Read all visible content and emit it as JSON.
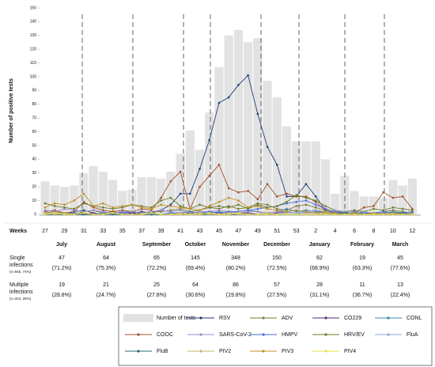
{
  "chart_data": {
    "type": "combo",
    "ylabel": "Number of positive tests",
    "xlabel": "Weeks",
    "categories": [
      "27",
      null,
      "29",
      null,
      "31",
      null,
      "33",
      null,
      "35",
      null,
      "37",
      null,
      "39",
      null,
      "41",
      null,
      "43",
      null,
      "45",
      null,
      "47",
      null,
      "49",
      null,
      "51",
      null,
      "53",
      null,
      "2",
      null,
      "4",
      null,
      "6",
      null,
      "8",
      null,
      "10",
      null,
      "12"
    ],
    "ylim": [
      0,
      150
    ],
    "yticks": [
      0,
      10,
      20,
      30,
      40,
      50,
      60,
      70,
      80,
      90,
      100,
      110,
      120,
      130,
      140,
      150
    ],
    "bars": {
      "name": "Number of tests",
      "color": "#e2e2e2",
      "values": [
        24,
        21,
        20,
        21,
        30,
        35,
        31,
        25,
        17,
        18,
        27,
        27,
        26,
        31,
        44,
        61,
        47,
        74,
        107,
        130,
        134,
        125,
        128,
        97,
        85,
        64,
        53,
        53,
        53,
        40,
        15,
        28,
        17,
        13,
        13,
        12,
        25,
        21,
        26
      ]
    },
    "series": [
      {
        "name": "RSV",
        "color": "#1f3d7a",
        "values": [
          0,
          1,
          0,
          2,
          3,
          1,
          0,
          1,
          2,
          1,
          2,
          1,
          3,
          7,
          15,
          15,
          33,
          54,
          81,
          85,
          94,
          101,
          73,
          49,
          36,
          13,
          13,
          22,
          13,
          3,
          1,
          1,
          0,
          1,
          1,
          0,
          1,
          1,
          0
        ]
      },
      {
        "name": "ADV",
        "color": "#7a7a3a",
        "values": [
          1,
          2,
          1,
          0,
          2,
          3,
          1,
          2,
          1,
          0,
          1,
          2,
          2,
          3,
          4,
          2,
          3,
          5,
          4,
          6,
          4,
          5,
          8,
          7,
          4,
          3,
          6,
          7,
          5,
          3,
          2,
          1,
          2,
          1,
          1,
          2,
          3,
          2,
          1
        ]
      },
      {
        "name": "CO229",
        "color": "#5a2a7a",
        "values": [
          0,
          0,
          1,
          0,
          0,
          1,
          0,
          0,
          0,
          1,
          0,
          0,
          0,
          0,
          0,
          1,
          0,
          0,
          1,
          0,
          1,
          1,
          0,
          0,
          1,
          2,
          3,
          2,
          3,
          1,
          0,
          0,
          1,
          0,
          0,
          0,
          1,
          0,
          0
        ]
      },
      {
        "name": "CONL",
        "color": "#3a8ab0",
        "values": [
          0,
          1,
          0,
          1,
          0,
          0,
          1,
          0,
          1,
          0,
          0,
          1,
          0,
          1,
          1,
          2,
          1,
          1,
          2,
          1,
          2,
          3,
          2,
          1,
          2,
          4,
          2,
          3,
          2,
          1,
          1,
          0,
          1,
          1,
          0,
          1,
          2,
          1,
          0
        ]
      },
      {
        "name": "COOC",
        "color": "#a0502a",
        "values": [
          2,
          3,
          1,
          2,
          9,
          5,
          3,
          2,
          3,
          2,
          4,
          3,
          12,
          24,
          31,
          4,
          20,
          28,
          36,
          19,
          16,
          17,
          11,
          22,
          13,
          15,
          13,
          13,
          9,
          3,
          2,
          2,
          1,
          5,
          6,
          16,
          12,
          13,
          4
        ]
      },
      {
        "name": "SARS-CoV-2",
        "color": "#9a8ac8",
        "values": [
          3,
          2,
          4,
          3,
          2,
          3,
          2,
          1,
          2,
          2,
          1,
          2,
          3,
          2,
          3,
          1,
          2,
          2,
          3,
          2,
          1,
          2,
          2,
          1,
          2,
          2,
          1,
          1,
          1,
          0,
          1,
          2,
          1,
          0,
          1,
          1,
          0,
          1,
          0
        ]
      },
      {
        "name": "HMPV",
        "color": "#4a6ae0",
        "values": [
          0,
          0,
          0,
          1,
          0,
          0,
          0,
          0,
          1,
          0,
          0,
          0,
          0,
          1,
          1,
          0,
          1,
          2,
          1,
          2,
          2,
          3,
          4,
          5,
          6,
          8,
          9,
          10,
          7,
          4,
          2,
          1,
          2,
          1,
          1,
          2,
          1,
          1,
          2
        ]
      },
      {
        "name": "HRV/EV",
        "color": "#6a7a2a",
        "values": [
          8,
          6,
          5,
          4,
          8,
          6,
          5,
          4,
          5,
          7,
          6,
          5,
          10,
          12,
          6,
          4,
          7,
          5,
          6,
          5,
          7,
          4,
          7,
          5,
          6,
          9,
          14,
          12,
          10,
          6,
          3,
          2,
          3,
          2,
          4,
          3,
          5,
          4,
          3
        ]
      },
      {
        "name": "FluA",
        "color": "#8aaad0",
        "values": [
          0,
          0,
          0,
          0,
          0,
          0,
          0,
          0,
          0,
          0,
          0,
          0,
          0,
          0,
          0,
          0,
          0,
          0,
          0,
          0,
          0,
          0,
          0,
          0,
          0,
          1,
          1,
          2,
          3,
          2,
          3,
          2,
          1,
          2,
          1,
          0,
          1,
          0,
          0
        ]
      },
      {
        "name": "FluB",
        "color": "#2a6a7a",
        "values": [
          0,
          0,
          0,
          0,
          0,
          0,
          0,
          0,
          0,
          0,
          0,
          0,
          0,
          0,
          0,
          0,
          0,
          0,
          0,
          0,
          0,
          0,
          0,
          0,
          0,
          0,
          0,
          0,
          0,
          0,
          0,
          1,
          0,
          0,
          0,
          0,
          0,
          1,
          0
        ]
      },
      {
        "name": "PIV2",
        "color": "#c8b070",
        "values": [
          1,
          0,
          1,
          0,
          1,
          0,
          0,
          1,
          0,
          0,
          0,
          1,
          0,
          0,
          1,
          0,
          1,
          0,
          0,
          1,
          0,
          0,
          0,
          1,
          0,
          0,
          0,
          0,
          0,
          1,
          0,
          0,
          0,
          0,
          0,
          0,
          0,
          0,
          0
        ]
      },
      {
        "name": "PIV3",
        "color": "#c09020",
        "values": [
          5,
          8,
          7,
          10,
          15,
          6,
          8,
          5,
          6,
          7,
          5,
          4,
          7,
          6,
          5,
          4,
          3,
          6,
          9,
          12,
          10,
          5,
          6,
          4,
          3,
          2,
          3,
          2,
          1,
          2,
          1,
          0,
          1,
          0,
          1,
          0,
          1,
          0,
          0
        ]
      },
      {
        "name": "PIV4",
        "color": "#e8e040",
        "values": [
          0,
          1,
          0,
          0,
          1,
          0,
          0,
          1,
          0,
          0,
          0,
          1,
          0,
          0,
          0,
          0,
          0,
          1,
          0,
          0,
          1,
          0,
          0,
          0,
          0,
          0,
          0,
          0,
          0,
          0,
          0,
          0,
          0,
          0,
          0,
          0,
          0,
          0,
          0
        ]
      }
    ]
  },
  "table": {
    "months": [
      "July",
      "August",
      "September",
      "October",
      "November",
      "December",
      "January",
      "February",
      "March"
    ],
    "rows": [
      {
        "label": "Single",
        "label2": "infections",
        "n": "(n=945, 74%)",
        "counts": [
          47,
          64,
          65,
          145,
          348,
          150,
          62,
          19,
          45
        ],
        "pcts": [
          "(71.2%)",
          "(75.3%)",
          "(72.2%)",
          "(69.4%)",
          "(80.2%)",
          "(72.5%)",
          "(68.9%)",
          "(63.3%)",
          "(77.6%)"
        ]
      },
      {
        "label": "Multiple",
        "label2": "infections",
        "n": "(n=324, 26%)",
        "counts": [
          19,
          21,
          25,
          64,
          86,
          57,
          28,
          11,
          13
        ],
        "pcts": [
          "(28.8%)",
          "(24.7%)",
          "(27.8%)",
          "(30.6%)",
          "(19.8%)",
          "(27.5%)",
          "(31.1%)",
          "(36.7%)",
          "(22.4%)"
        ]
      }
    ]
  }
}
